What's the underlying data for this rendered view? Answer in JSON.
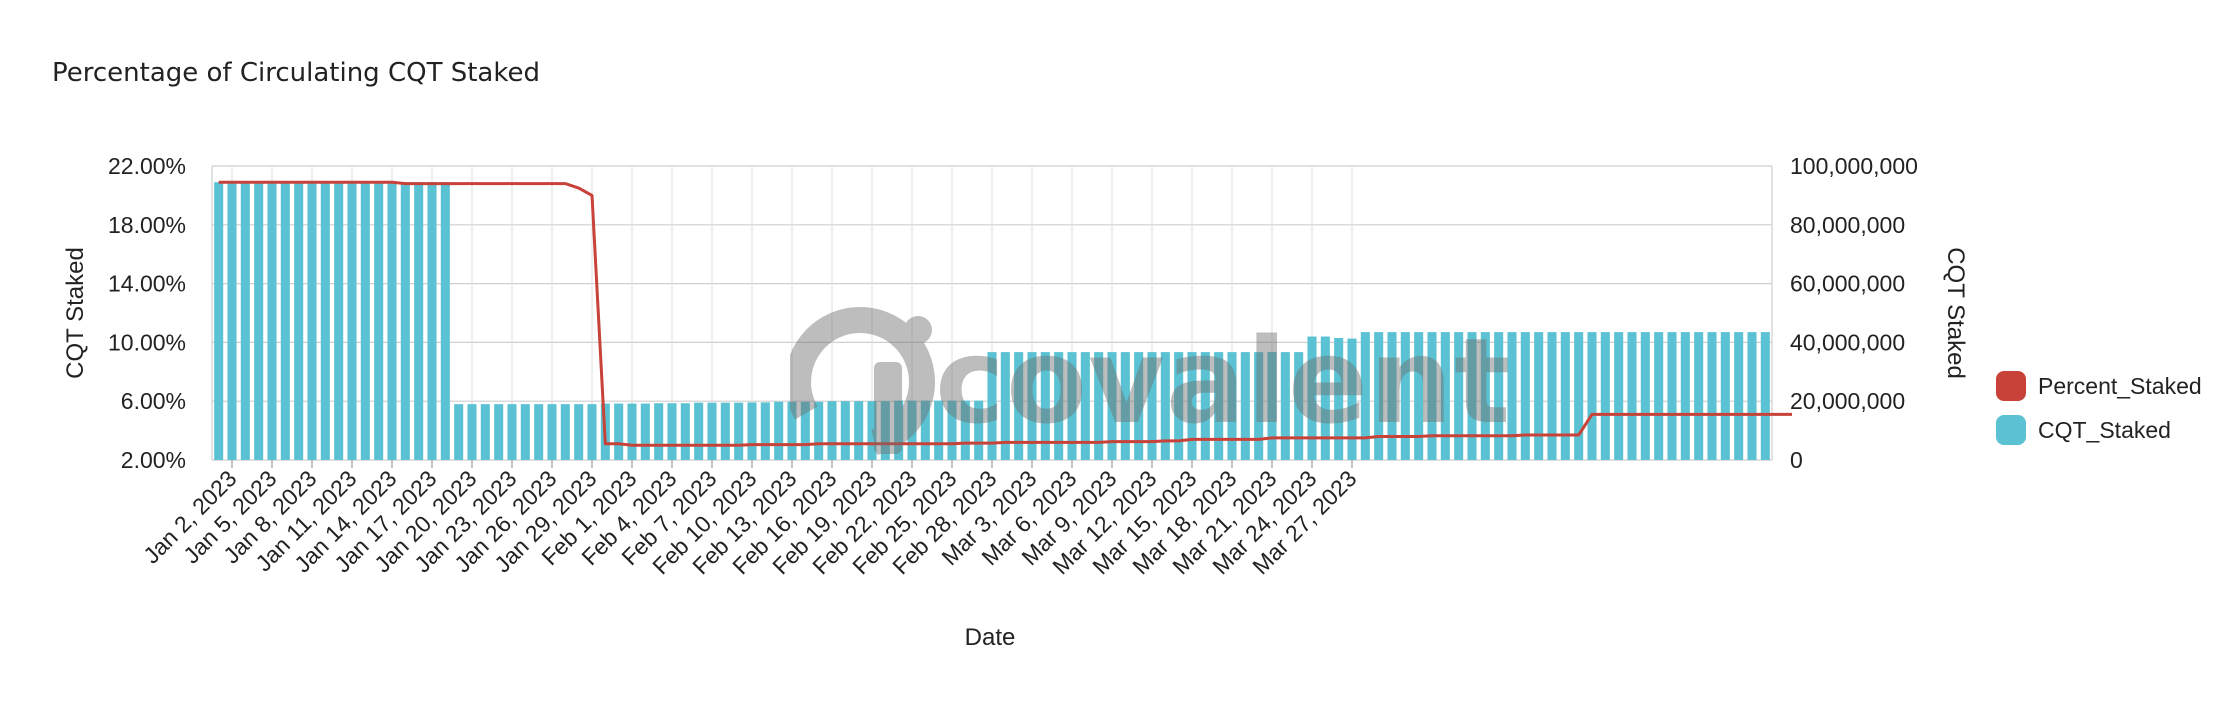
{
  "chart_data": {
    "type": "bar",
    "title": "Percentage of Circulating CQT Staked",
    "xlabel": "Date",
    "ylabel_left": "CQT Staked",
    "ylabel_right": "CQT Staked",
    "start_date": "2023-01-01",
    "left_axis": {
      "ticks": [
        "2.00%",
        "6.00%",
        "10.00%",
        "14.00%",
        "18.00%",
        "22.00%"
      ],
      "ylim": [
        2.0,
        22.0
      ]
    },
    "right_axis": {
      "ticks": [
        "0",
        "20,000,000",
        "40,000,000",
        "60,000,000",
        "80,000,000",
        "100,000,000"
      ],
      "ylim": [
        0,
        100000000
      ]
    },
    "x_tick_labels": [
      "Jan 2, 2023",
      "Jan 5, 2023",
      "Jan 8, 2023",
      "Jan 11, 2023",
      "Jan 14, 2023",
      "Jan 17, 2023",
      "Jan 20, 2023",
      "Jan 23, 2023",
      "Jan 26, 2023",
      "Jan 29, 2023",
      "Feb 1, 2023",
      "Feb 4, 2023",
      "Feb 7, 2023",
      "Feb 10, 2023",
      "Feb 13, 2023",
      "Feb 16, 2023",
      "Feb 19, 2023",
      "Feb 22, 2023",
      "Feb 25, 2023",
      "Feb 28, 2023",
      "Mar 3, 2023",
      "Mar 6, 2023",
      "Mar 9, 2023",
      "Mar 12, 2023",
      "Mar 15, 2023",
      "Mar 18, 2023",
      "Mar 21, 2023",
      "Mar 24, 2023",
      "Mar 27, 2023"
    ],
    "grid": true,
    "legend_position": "right",
    "series": [
      {
        "name": "CQT_Staked",
        "type": "bar",
        "axis": "right",
        "color": "#5bc2d4",
        "values": [
          94500000,
          94500000,
          94500000,
          94500000,
          94500000,
          94500000,
          94500000,
          94500000,
          94500000,
          94500000,
          94500000,
          94500000,
          94500000,
          94500000,
          94500000,
          94500000,
          94500000,
          94500000,
          19000000,
          19000000,
          19000000,
          19000000,
          19000000,
          19000000,
          19000000,
          19000000,
          19000000,
          19000000,
          19000000,
          19200000,
          19200000,
          19200000,
          19200000,
          19300000,
          19300000,
          19300000,
          19500000,
          19500000,
          19500000,
          19500000,
          19600000,
          19600000,
          19800000,
          19800000,
          19800000,
          19800000,
          20000000,
          20000000,
          20000000,
          20000000,
          20000000,
          20200000,
          20200000,
          20200000,
          20200000,
          20200000,
          20200000,
          20200000,
          36700000,
          36700000,
          36700000,
          36700000,
          36700000,
          36700000,
          36700000,
          36700000,
          36700000,
          36700000,
          36700000,
          36700000,
          36700000,
          36700000,
          36700000,
          36700000,
          36700000,
          36700000,
          36700000,
          36700000,
          36700000,
          36700000,
          36700000,
          36700000,
          42000000,
          42000000,
          41500000,
          41300000,
          43500000,
          43500000,
          43500000,
          43500000,
          43500000,
          43500000,
          43500000,
          43500000,
          43500000,
          43500000,
          43500000,
          43500000,
          43500000,
          43500000,
          43500000,
          43500000,
          43500000,
          43500000,
          43500000,
          43500000,
          43500000,
          43500000,
          43500000,
          43500000,
          43500000,
          43500000,
          43500000,
          43500000,
          43500000,
          43500000,
          43500000
        ]
      },
      {
        "name": "Percent_Staked",
        "type": "line",
        "axis": "left",
        "color": "#c8423a",
        "values": [
          20.9,
          20.9,
          20.9,
          20.9,
          20.9,
          20.9,
          20.9,
          20.9,
          20.9,
          20.9,
          20.9,
          20.9,
          20.9,
          20.9,
          20.8,
          20.8,
          20.8,
          20.8,
          20.8,
          20.8,
          20.8,
          20.8,
          20.8,
          20.8,
          20.8,
          20.8,
          20.8,
          20.5,
          20.0,
          3.1,
          3.1,
          3.0,
          3.0,
          3.0,
          3.0,
          3.0,
          3.0,
          3.0,
          3.0,
          3.0,
          3.05,
          3.05,
          3.05,
          3.05,
          3.05,
          3.1,
          3.1,
          3.1,
          3.1,
          3.1,
          3.1,
          3.1,
          3.1,
          3.1,
          3.1,
          3.1,
          3.15,
          3.15,
          3.15,
          3.2,
          3.2,
          3.2,
          3.2,
          3.2,
          3.2,
          3.2,
          3.2,
          3.25,
          3.25,
          3.25,
          3.25,
          3.3,
          3.3,
          3.4,
          3.4,
          3.4,
          3.4,
          3.4,
          3.4,
          3.5,
          3.5,
          3.5,
          3.5,
          3.5,
          3.5,
          3.5,
          3.5,
          3.6,
          3.6,
          3.6,
          3.6,
          3.65,
          3.65,
          3.65,
          3.65,
          3.65,
          3.65,
          3.65,
          3.7,
          3.7,
          3.7,
          3.7,
          3.7,
          5.1,
          5.1,
          5.1,
          5.1,
          5.1,
          5.1,
          5.1,
          5.1,
          5.1,
          5.1,
          5.1,
          5.1,
          5.1,
          5.1,
          5.1,
          5.1
        ]
      }
    ]
  },
  "watermark": {
    "text": "covalent"
  }
}
